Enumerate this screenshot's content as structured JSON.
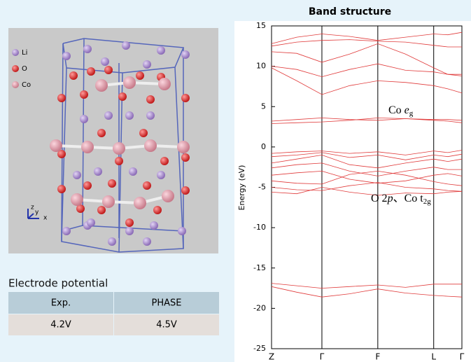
{
  "structure": {
    "legend": [
      "Li",
      "O",
      "Co"
    ],
    "axes": [
      "z",
      "y",
      "x"
    ]
  },
  "table": {
    "title": "Electrode potential",
    "header": [
      "Exp.",
      "PHASE"
    ],
    "rows": [
      [
        "4.2V",
        "4.5V"
      ]
    ]
  },
  "chart_data": {
    "type": "line",
    "title": "Band structure",
    "y_label": "Energy (eV)",
    "color": "#e03a3a",
    "x": [
      0,
      0.5,
      1,
      1.55,
      2.11,
      2.66,
      3.22,
      3.5,
      3.78
    ],
    "xlim": [
      0,
      3.78
    ],
    "xticks": [
      {
        "value": 0,
        "label": "Z"
      },
      {
        "value": 1,
        "label": "Γ"
      },
      {
        "value": 2.11,
        "label": "F"
      },
      {
        "value": 3.22,
        "label": "L"
      },
      {
        "value": 3.78,
        "label": "Γ"
      }
    ],
    "ylim": [
      -25,
      15
    ],
    "yticks": [
      15,
      10,
      5,
      0,
      -5,
      -10,
      -15,
      -20,
      -25
    ],
    "annotations": [
      [
        "Co ",
        "e",
        "g"
      ],
      [
        "O 2",
        "p",
        "、Co t",
        "2g"
      ]
    ],
    "series": [
      {
        "values": [
          12.8,
          13.6,
          14,
          13.7,
          13.2,
          13.6,
          14,
          13.9,
          14.2
        ]
      },
      {
        "values": [
          12.5,
          13,
          13.2,
          13.3,
          13.1,
          13,
          12.6,
          12.4,
          12.4
        ]
      },
      {
        "values": [
          11.8,
          11.6,
          10.5,
          11.5,
          12.8,
          11.5,
          9.8,
          9,
          8.8
        ]
      },
      {
        "values": [
          10,
          9.6,
          8.7,
          9.6,
          10.3,
          9.5,
          9.3,
          9,
          9
        ]
      },
      {
        "values": [
          9.8,
          8.2,
          6.5,
          7.6,
          8.2,
          8,
          7.6,
          7.2,
          6.7
        ]
      },
      {
        "values": [
          3.2,
          3.4,
          3.6,
          3.4,
          3.3,
          3.5,
          3.4,
          3.4,
          3.3
        ]
      },
      {
        "values": [
          2.9,
          3,
          3.1,
          3.3,
          3.6,
          3.5,
          3.3,
          3.2,
          3
        ]
      },
      {
        "values": [
          -0.8,
          -0.6,
          -0.5,
          -0.8,
          -0.6,
          -1,
          -0.5,
          -0.7,
          -0.4
        ]
      },
      {
        "values": [
          -1.2,
          -1,
          -0.7,
          -1.3,
          -1,
          -1.6,
          -1,
          -1.2,
          -0.9
        ]
      },
      {
        "values": [
          -2,
          -1.5,
          -1,
          -2.2,
          -2.6,
          -2,
          -1.5,
          -1.8,
          -1.5
        ]
      },
      {
        "values": [
          -2.6,
          -2.2,
          -2,
          -3,
          -3.6,
          -3,
          -2.5,
          -2.8,
          -2.8
        ]
      },
      {
        "values": [
          -3.5,
          -3.2,
          -3,
          -4,
          -4.5,
          -4.2,
          -3.5,
          -3.3,
          -3.6
        ]
      },
      {
        "values": [
          -4.2,
          -4.5,
          -4.6,
          -3.4,
          -3,
          -3.5,
          -4.3,
          -4.6,
          -4.8
        ]
      },
      {
        "values": [
          -5,
          -5.3,
          -5.4,
          -4.8,
          -4.4,
          -5,
          -5.2,
          -5.4,
          -5.5
        ]
      },
      {
        "values": [
          -5.6,
          -5.8,
          -5,
          -5.6,
          -6,
          -5.7,
          -5.8,
          -5.6,
          -5.5
        ]
      },
      {
        "values": [
          -16.9,
          -17.2,
          -17.5,
          -17.3,
          -17.1,
          -17.4,
          -17,
          -17,
          -17
        ]
      },
      {
        "values": [
          -17.3,
          -18,
          -18.6,
          -18.2,
          -17.6,
          -18.1,
          -18.4,
          -18.5,
          -18.6
        ]
      }
    ]
  }
}
